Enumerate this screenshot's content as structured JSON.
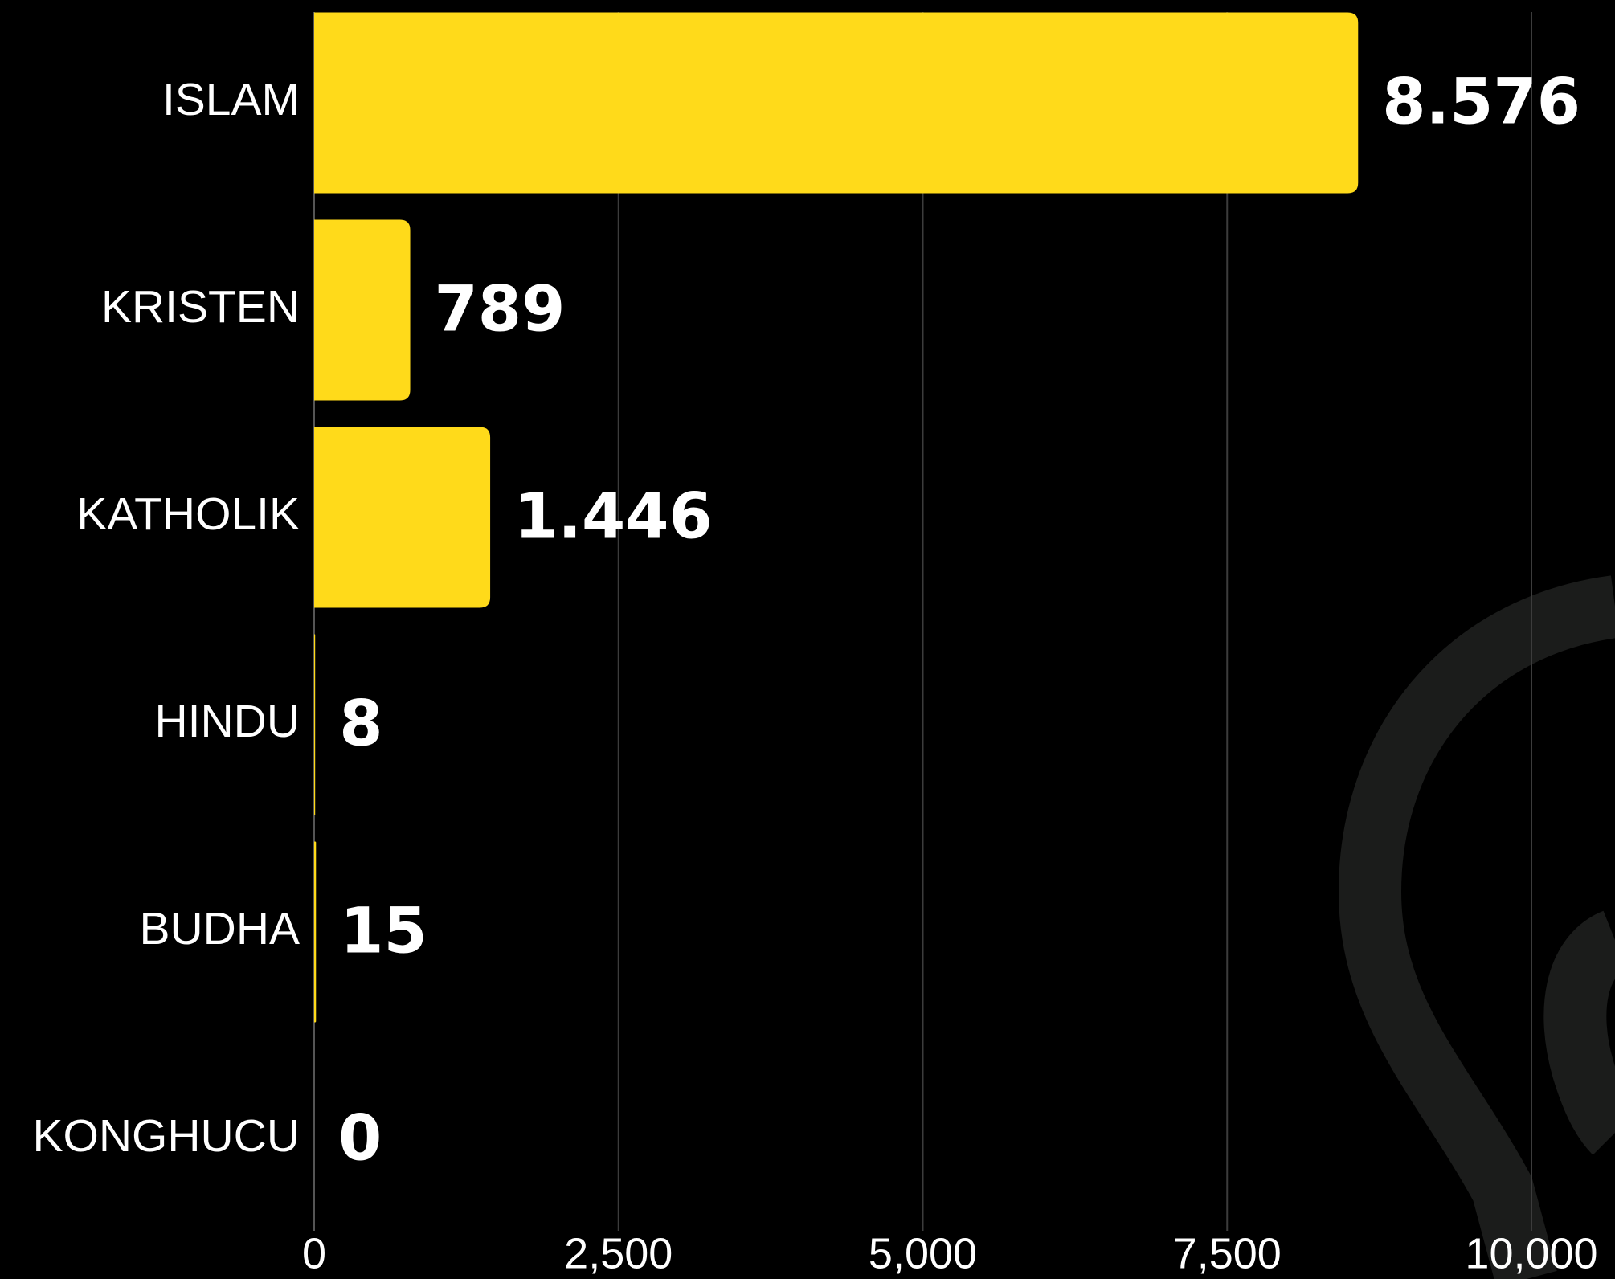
{
  "chart_data": {
    "type": "bar",
    "orientation": "horizontal",
    "categories": [
      "ISLAM",
      "KRISTEN",
      "KATHOLIK",
      "HINDU",
      "BUDHA",
      "KONGHUCU"
    ],
    "values": [
      8576,
      789,
      1446,
      8,
      15,
      0
    ],
    "value_labels": [
      "8.576",
      "789",
      "1.446",
      "8",
      "15",
      "0"
    ],
    "color": "#ffda1a",
    "xlim": [
      0,
      10000
    ],
    "xticks": [
      0,
      {
        "value": 2500,
        "label": "2,500"
      },
      {
        "value": 5000,
        "label": "5,000"
      },
      {
        "value": 7500,
        "label": "7,500"
      },
      {
        "value": 10000,
        "label": "10,000"
      }
    ],
    "grid": true
  }
}
